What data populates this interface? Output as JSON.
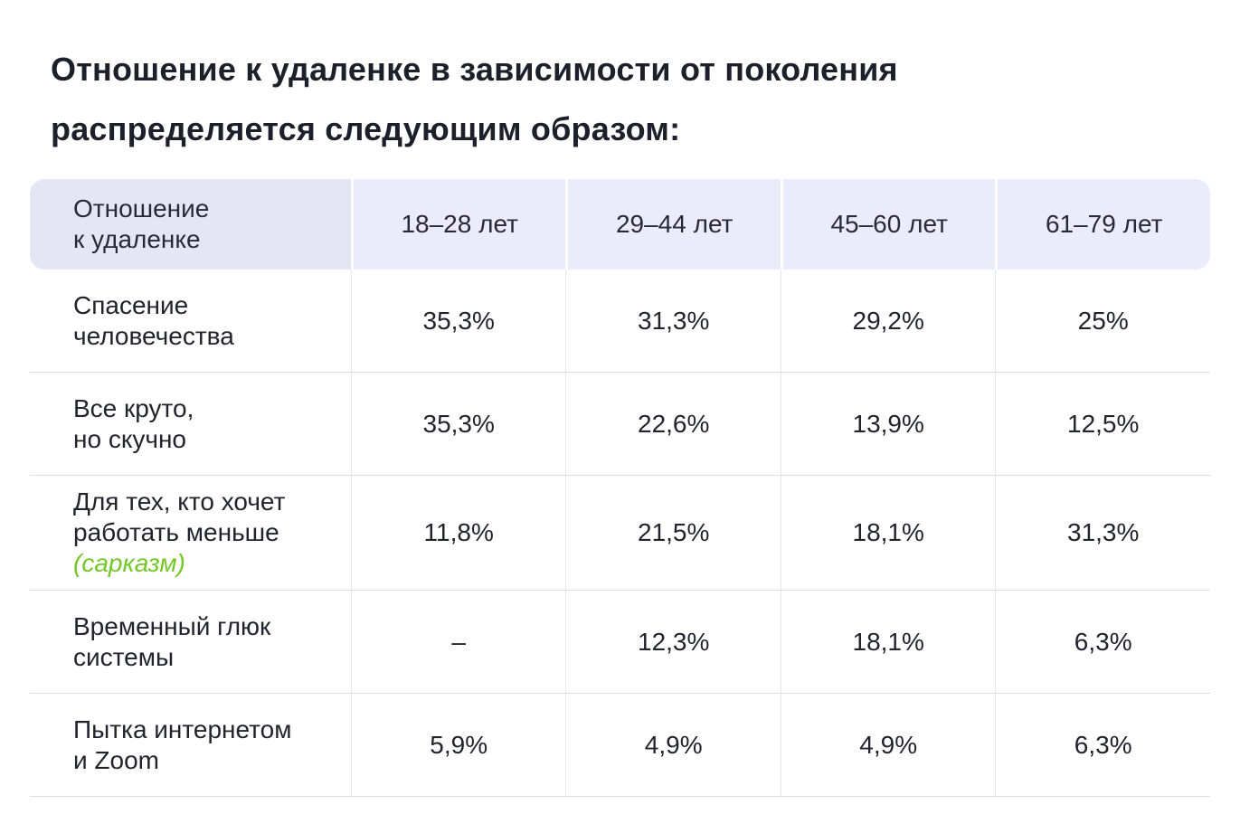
{
  "title": {
    "line1": "Отношение к удаленке в зависимости от поколения",
    "line2": "распределяется следующим образом:"
  },
  "table": {
    "header": {
      "col0_line1": "Отношение",
      "col0_line2": "к удаленке",
      "cols": [
        "18–28 лет",
        "29–44 лет",
        "45–60 лет",
        "61–79 лет"
      ]
    },
    "rows": [
      {
        "label_line1": "Спасение",
        "label_line2": "человечества",
        "values": [
          "35,3%",
          "31,3%",
          "29,2%",
          "25%"
        ]
      },
      {
        "label_line1": "Все круто,",
        "label_line2": "но скучно",
        "values": [
          "35,3%",
          "22,6%",
          "13,9%",
          "12,5%"
        ]
      },
      {
        "label_line1": "Для тех, кто хочет",
        "label_line2": "работать меньше",
        "note": "(сарказм)",
        "values": [
          "11,8%",
          "21,5%",
          "18,1%",
          "31,3%"
        ]
      },
      {
        "label_line1": "Временный глюк",
        "label_line2": "системы",
        "values": [
          "–",
          "12,3%",
          "18,1%",
          "6,3%"
        ]
      },
      {
        "label_line1": "Пытка интернетом",
        "label_line2": "и Zoom",
        "values": [
          "5,9%",
          "4,9%",
          "4,9%",
          "6,3%"
        ]
      }
    ],
    "colors": {
      "header_bg": "#eaedf9",
      "header_label_bg": "#e4e7f3",
      "accent_green": "#74c727",
      "text": "#23232e",
      "divider": "#dcdde4"
    }
  },
  "chart_data": {
    "type": "table",
    "title": "Отношение к удаленке в зависимости от поколения распределяется следующим образом:",
    "columns": [
      "Отношение к удаленке",
      "18–28 лет",
      "29–44 лет",
      "45–60 лет",
      "61–79 лет"
    ],
    "rows": [
      [
        "Спасение человечества",
        "35,3%",
        "31,3%",
        "29,2%",
        "25%"
      ],
      [
        "Все круто, но скучно",
        "35,3%",
        "22,6%",
        "13,9%",
        "12,5%"
      ],
      [
        "Для тех, кто хочет работать меньше (сарказм)",
        "11,8%",
        "21,5%",
        "18,1%",
        "31,3%"
      ],
      [
        "Временный глюк системы",
        "–",
        "12,3%",
        "18,1%",
        "6,3%"
      ],
      [
        "Пытка интернетом и Zoom",
        "5,9%",
        "4,9%",
        "4,9%",
        "6,3%"
      ]
    ]
  }
}
